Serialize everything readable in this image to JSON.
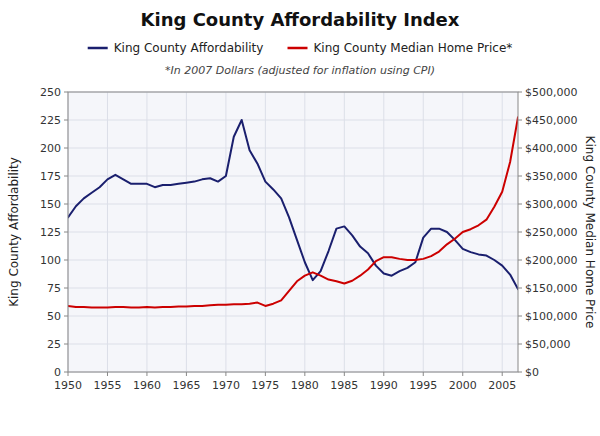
{
  "chart_data": {
    "type": "line",
    "title": "King County Affordability Index",
    "subtitle": "*In 2007 Dollars (adjusted for inflation using CPI)",
    "y_label": "King County Affordability",
    "y2_label": "King County Median Home Price",
    "x": [
      1950,
      1951,
      1952,
      1953,
      1954,
      1955,
      1956,
      1957,
      1958,
      1959,
      1960,
      1961,
      1962,
      1963,
      1964,
      1965,
      1966,
      1967,
      1968,
      1969,
      1970,
      1971,
      1972,
      1973,
      1974,
      1975,
      1976,
      1977,
      1978,
      1979,
      1980,
      1981,
      1982,
      1983,
      1984,
      1985,
      1986,
      1987,
      1988,
      1989,
      1990,
      1991,
      1992,
      1993,
      1994,
      1995,
      1996,
      1997,
      1998,
      1999,
      2000,
      2001,
      2002,
      2003,
      2004,
      2005,
      2006,
      2007
    ],
    "series": [
      {
        "name": "King County Affordability",
        "color": "#1a1f6e",
        "values": [
          138,
          148,
          155,
          160,
          165,
          172,
          176,
          172,
          168,
          168,
          168,
          165,
          167,
          167,
          168,
          169,
          170,
          172,
          173,
          170,
          175,
          210,
          225,
          198,
          186,
          170,
          163,
          155,
          138,
          118,
          98,
          82,
          90,
          108,
          128,
          130,
          122,
          112,
          106,
          95,
          88,
          86,
          90,
          93,
          98,
          120,
          128,
          128,
          125,
          118,
          110,
          107,
          105,
          104,
          100,
          95,
          87,
          74
        ]
      },
      {
        "name": "King County Median Home Price*",
        "color": "#cc0000",
        "axis": "y2",
        "values": [
          118000,
          116000,
          116000,
          115000,
          115000,
          115000,
          116000,
          116000,
          115000,
          115000,
          116000,
          115000,
          116000,
          116000,
          117000,
          117000,
          118000,
          118000,
          119000,
          120000,
          120000,
          121000,
          121000,
          122000,
          124000,
          118000,
          122000,
          128000,
          145000,
          162000,
          172000,
          178000,
          172000,
          165000,
          162000,
          158000,
          163000,
          172000,
          183000,
          198000,
          205000,
          205000,
          202000,
          200000,
          200000,
          202000,
          207000,
          215000,
          228000,
          238000,
          250000,
          255000,
          262000,
          272000,
          295000,
          322000,
          375000,
          455000
        ]
      }
    ],
    "xlim": [
      1950,
      2007
    ],
    "xticks": [
      1950,
      1955,
      1960,
      1965,
      1970,
      1975,
      1980,
      1985,
      1990,
      1995,
      2000,
      2005
    ],
    "ylim": [
      0,
      250
    ],
    "yticks": [
      0,
      25,
      50,
      75,
      100,
      125,
      150,
      175,
      200,
      225,
      250
    ],
    "y2lim": [
      0,
      500000
    ],
    "y2ticks": [
      {
        "value": 0,
        "label": "$0"
      },
      {
        "value": 50000,
        "label": "$50,000"
      },
      {
        "value": 100000,
        "label": "$100,000"
      },
      {
        "value": 150000,
        "label": "$150,000"
      },
      {
        "value": 200000,
        "label": "$200,000"
      },
      {
        "value": 250000,
        "label": "$250,000"
      },
      {
        "value": 300000,
        "label": "$300,000"
      },
      {
        "value": 350000,
        "label": "$350,000"
      },
      {
        "value": 400000,
        "label": "$400,000"
      },
      {
        "value": 450000,
        "label": "$450,000"
      },
      {
        "value": 500000,
        "label": "$500,000"
      }
    ],
    "grid": true,
    "legend": "top"
  }
}
